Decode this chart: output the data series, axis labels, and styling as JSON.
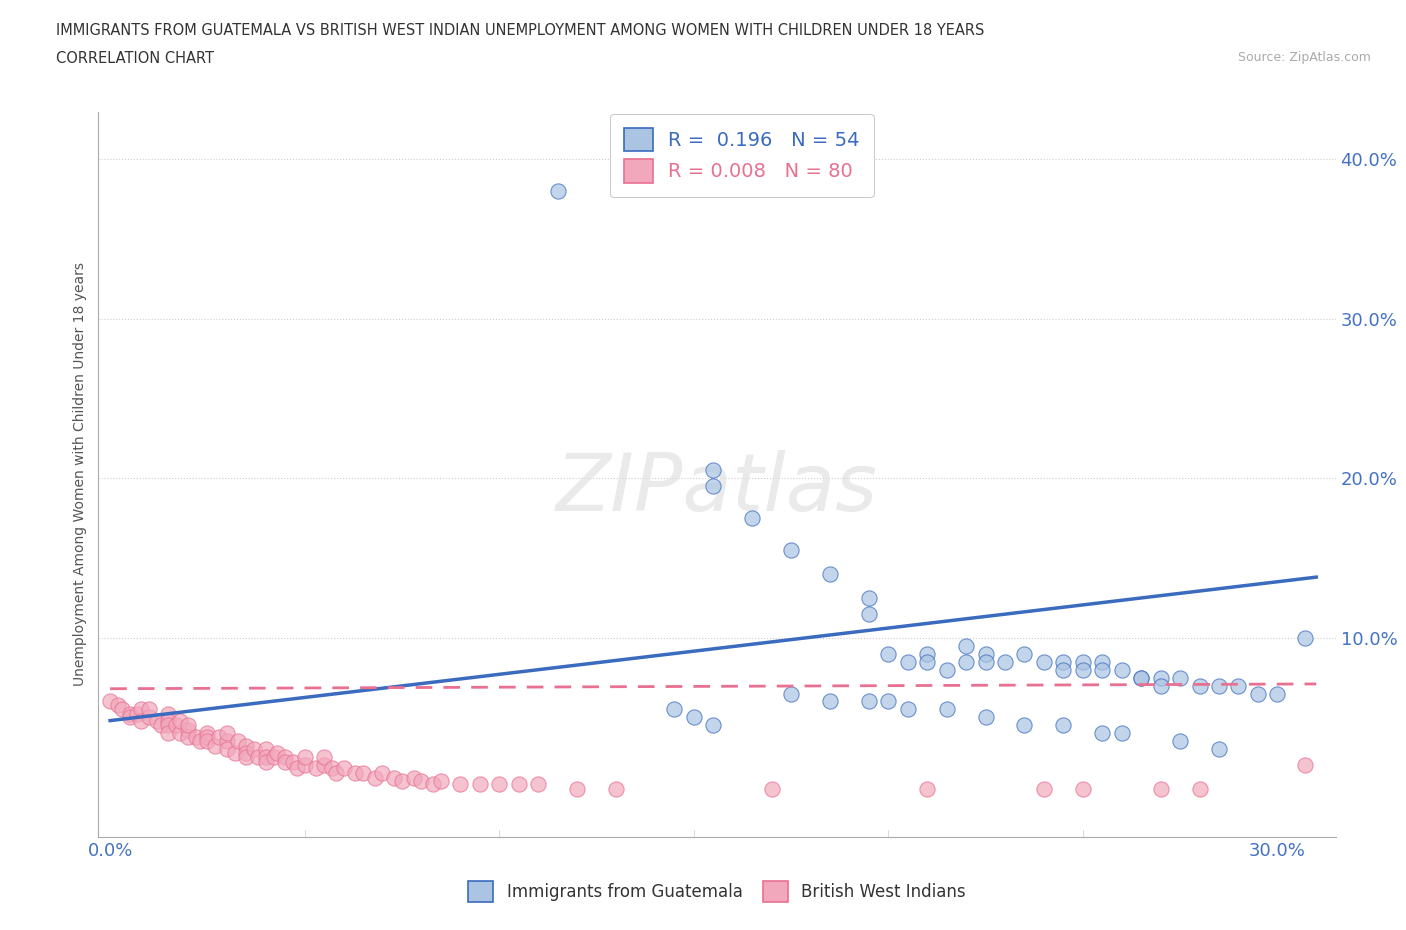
{
  "title_line1": "IMMIGRANTS FROM GUATEMALA VS BRITISH WEST INDIAN UNEMPLOYMENT AMONG WOMEN WITH CHILDREN UNDER 18 YEARS",
  "title_line2": "CORRELATION CHART",
  "source_text": "Source: ZipAtlas.com",
  "ylabel": "Unemployment Among Women with Children Under 18 years",
  "xlim": [
    -0.003,
    0.315
  ],
  "ylim": [
    -0.025,
    0.43
  ],
  "r_guatemala": 0.196,
  "n_guatemala": 54,
  "r_bwi": 0.008,
  "n_bwi": 80,
  "color_guatemala": "#aac4e2",
  "color_bwi": "#f2a8bc",
  "line_color_guatemala": "#3a6bbf",
  "line_color_bwi": "#e87090",
  "watermark": "ZIPatlas",
  "legend_label_guatemala": "Immigrants from Guatemala",
  "legend_label_bwi": "British West Indians",
  "guatemala_x": [
    0.115,
    0.155,
    0.155,
    0.165,
    0.175,
    0.185,
    0.195,
    0.195,
    0.2,
    0.205,
    0.21,
    0.21,
    0.215,
    0.22,
    0.22,
    0.225,
    0.225,
    0.23,
    0.235,
    0.24,
    0.245,
    0.245,
    0.25,
    0.25,
    0.255,
    0.255,
    0.26,
    0.265,
    0.265,
    0.27,
    0.27,
    0.275,
    0.28,
    0.285,
    0.29,
    0.295,
    0.3,
    0.175,
    0.185,
    0.195,
    0.2,
    0.205,
    0.145,
    0.15,
    0.155,
    0.215,
    0.225,
    0.235,
    0.245,
    0.255,
    0.26,
    0.275,
    0.285,
    0.307
  ],
  "guatemala_y": [
    0.38,
    0.205,
    0.195,
    0.175,
    0.155,
    0.14,
    0.125,
    0.115,
    0.09,
    0.085,
    0.09,
    0.085,
    0.08,
    0.095,
    0.085,
    0.09,
    0.085,
    0.085,
    0.09,
    0.085,
    0.085,
    0.08,
    0.085,
    0.08,
    0.085,
    0.08,
    0.08,
    0.075,
    0.075,
    0.075,
    0.07,
    0.075,
    0.07,
    0.07,
    0.07,
    0.065,
    0.065,
    0.065,
    0.06,
    0.06,
    0.06,
    0.055,
    0.055,
    0.05,
    0.045,
    0.055,
    0.05,
    0.045,
    0.045,
    0.04,
    0.04,
    0.035,
    0.03,
    0.1
  ],
  "bwi_x": [
    0.0,
    0.002,
    0.003,
    0.005,
    0.005,
    0.007,
    0.008,
    0.008,
    0.01,
    0.01,
    0.012,
    0.013,
    0.015,
    0.015,
    0.015,
    0.015,
    0.017,
    0.018,
    0.018,
    0.02,
    0.02,
    0.02,
    0.022,
    0.023,
    0.025,
    0.025,
    0.025,
    0.027,
    0.028,
    0.03,
    0.03,
    0.03,
    0.032,
    0.033,
    0.035,
    0.035,
    0.035,
    0.037,
    0.038,
    0.04,
    0.04,
    0.04,
    0.042,
    0.043,
    0.045,
    0.045,
    0.047,
    0.048,
    0.05,
    0.05,
    0.053,
    0.055,
    0.055,
    0.057,
    0.058,
    0.06,
    0.063,
    0.065,
    0.068,
    0.07,
    0.073,
    0.075,
    0.078,
    0.08,
    0.083,
    0.085,
    0.09,
    0.095,
    0.1,
    0.105,
    0.11,
    0.12,
    0.13,
    0.17,
    0.21,
    0.24,
    0.25,
    0.27,
    0.28,
    0.307
  ],
  "bwi_y": [
    0.06,
    0.058,
    0.055,
    0.052,
    0.05,
    0.052,
    0.055,
    0.048,
    0.05,
    0.055,
    0.048,
    0.045,
    0.052,
    0.048,
    0.045,
    0.04,
    0.045,
    0.04,
    0.048,
    0.042,
    0.038,
    0.045,
    0.038,
    0.035,
    0.04,
    0.038,
    0.035,
    0.032,
    0.038,
    0.035,
    0.04,
    0.03,
    0.028,
    0.035,
    0.032,
    0.028,
    0.025,
    0.03,
    0.025,
    0.03,
    0.025,
    0.022,
    0.025,
    0.028,
    0.025,
    0.022,
    0.022,
    0.018,
    0.02,
    0.025,
    0.018,
    0.02,
    0.025,
    0.018,
    0.015,
    0.018,
    0.015,
    0.015,
    0.012,
    0.015,
    0.012,
    0.01,
    0.012,
    0.01,
    0.008,
    0.01,
    0.008,
    0.008,
    0.008,
    0.008,
    0.008,
    0.005,
    0.005,
    0.005,
    0.005,
    0.005,
    0.005,
    0.005,
    0.005,
    0.02
  ],
  "trendline_guatemala_x0": 0.0,
  "trendline_guatemala_y0": 0.048,
  "trendline_guatemala_x1": 0.31,
  "trendline_guatemala_y1": 0.138,
  "trendline_bwi_x0": 0.0,
  "trendline_bwi_y0": 0.068,
  "trendline_bwi_x1": 0.31,
  "trendline_bwi_y1": 0.071
}
